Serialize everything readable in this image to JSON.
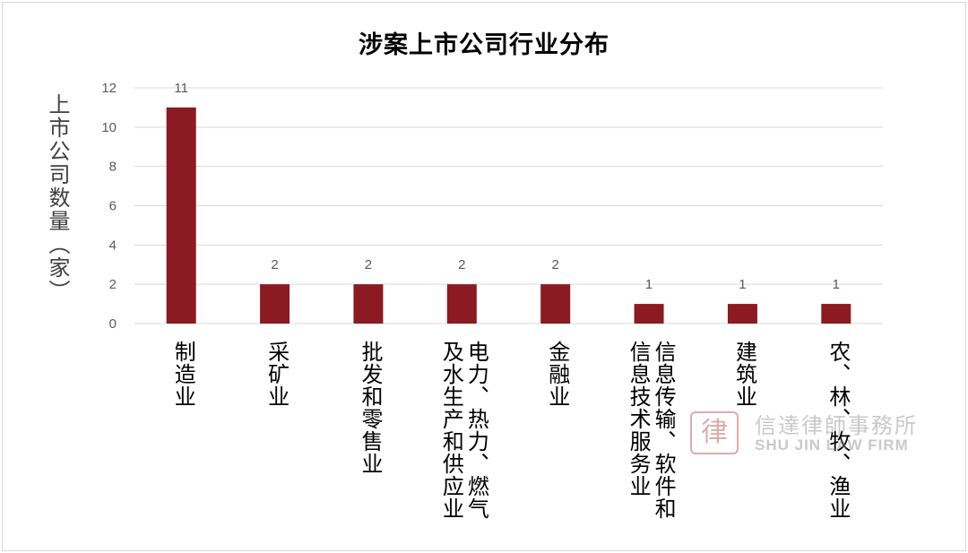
{
  "chart_data": {
    "type": "bar",
    "title": "涉案上市公司行业分布",
    "xlabel": "",
    "ylabel": "上市公司数量（家）",
    "ylim": [
      0,
      12
    ],
    "yticks": [
      0,
      2,
      4,
      6,
      8,
      10,
      12
    ],
    "grid": true,
    "bar_color": "#8B1A22",
    "categories": [
      "制造业",
      "采矿业",
      "批发和零售业",
      "电力、热力、燃气及水生产和供应业",
      "金融业",
      "信息传输、软件和信息技术服务业",
      "建筑业",
      "农、林、牧、渔业"
    ],
    "category_lines": [
      [
        "制造业"
      ],
      [
        "采矿业"
      ],
      [
        "批发和零售业"
      ],
      [
        "电力、热力、燃气",
        "及水生产和供应业"
      ],
      [
        "金融业"
      ],
      [
        "信息传输、软件和",
        "信息技术服务业"
      ],
      [
        "建筑业"
      ],
      [
        "农、林、牧、渔业"
      ]
    ],
    "values": [
      11,
      2,
      2,
      2,
      2,
      1,
      1,
      1
    ],
    "data_labels": [
      "11",
      "2",
      "2",
      "2",
      "2",
      "1",
      "1",
      "1"
    ]
  },
  "watermark": {
    "seal": "律",
    "name_cn": "信達律師事務所",
    "name_en": "SHU JIN LAW FIRM"
  }
}
